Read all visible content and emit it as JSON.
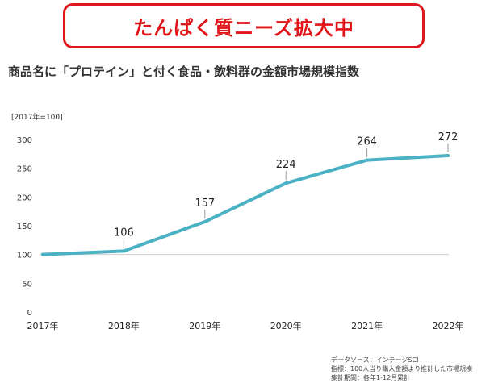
{
  "banner": {
    "title": "たんぱく質ニーズ拡大中"
  },
  "header": {
    "subtitle": "商品名に「プロテイン」と付く食品・飲料群の金額市場規模指数"
  },
  "chart_data": {
    "type": "line",
    "index_note": "[2017年=100]",
    "x": [
      "2017年",
      "2018年",
      "2019年",
      "2020年",
      "2021年",
      "2022年"
    ],
    "series": [
      {
        "values": [
          100,
          106,
          157,
          224,
          264,
          272
        ]
      }
    ],
    "data_labels": [
      "",
      "106",
      "157",
      "224",
      "264",
      "272"
    ],
    "yticks": [
      0,
      50,
      100,
      150,
      200,
      250,
      300
    ],
    "ylim": [
      0,
      300
    ],
    "grid": false,
    "line_color": "#4bb1c4"
  },
  "source": {
    "line1": "データソース：インテージSCI",
    "line2": "指標：100人当り購入金額より推計した市場規模",
    "line3": "集計期間：各年1-12月累計"
  }
}
